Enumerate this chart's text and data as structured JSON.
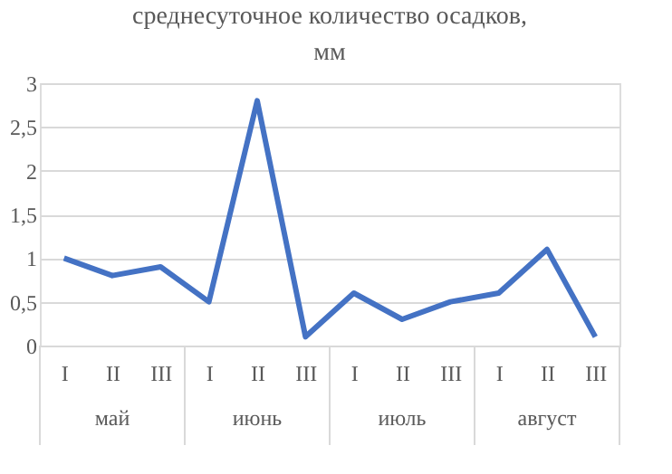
{
  "chart_data": {
    "type": "line",
    "title": "среднесуточное количество осадков, мм",
    "categories": [
      "I",
      "II",
      "III",
      "I",
      "II",
      "III",
      "I",
      "II",
      "III",
      "I",
      "II",
      "III"
    ],
    "annotations": [
      "май",
      "июнь",
      "июль",
      "август"
    ],
    "series": [
      {
        "color": "#4472c4",
        "values": [
          1.0,
          0.8,
          0.9,
          0.5,
          2.8,
          0.1,
          0.6,
          0.3,
          0.5,
          0.6,
          1.1,
          0.1
        ]
      }
    ],
    "ylim": [
      0,
      3
    ],
    "yticks": [
      0,
      {
        "value": 0.5,
        "label": "0,5"
      },
      1,
      {
        "value": 1.5,
        "label": "1,5"
      },
      2,
      {
        "value": 2.5,
        "label": "2,5"
      },
      3
    ],
    "grid": "y",
    "legend": false,
    "marker": "none",
    "line_style": "solid"
  }
}
